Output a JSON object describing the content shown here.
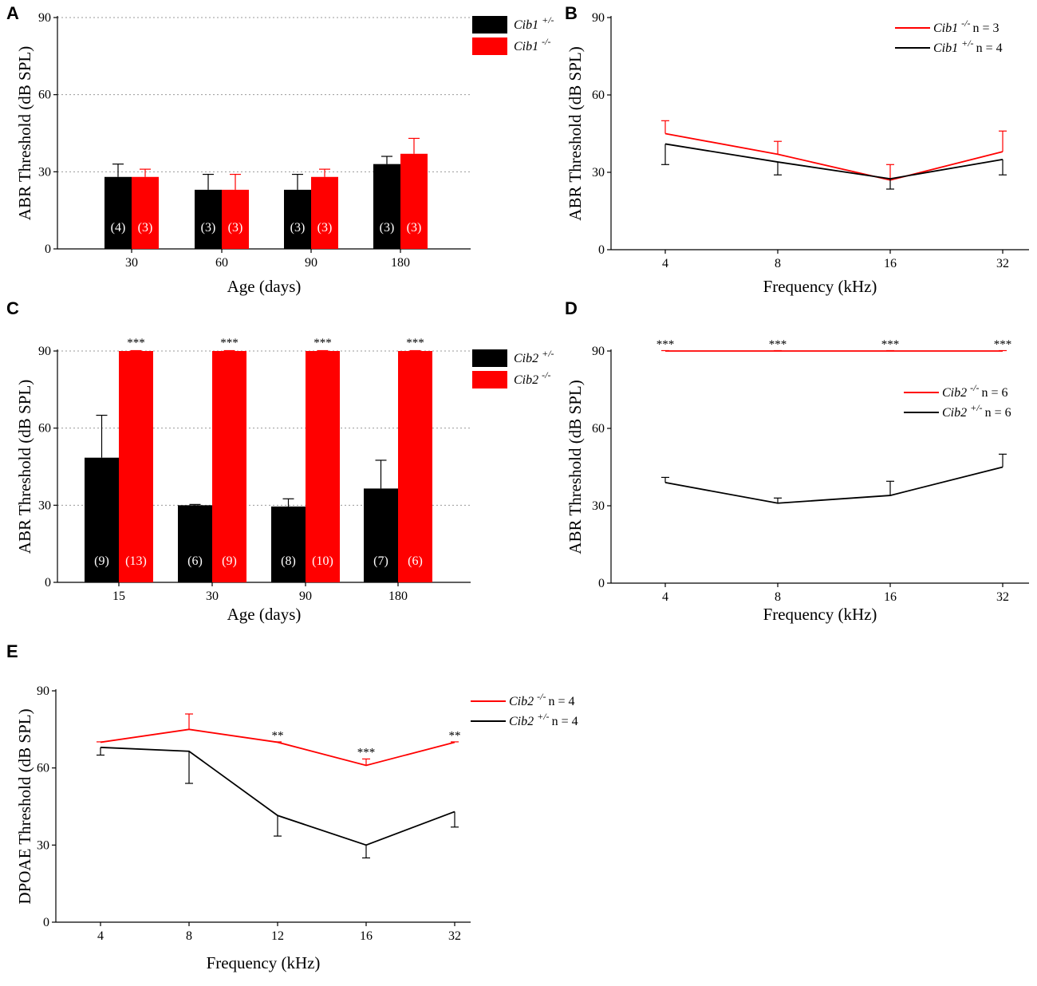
{
  "colors": {
    "red": "#ff0000",
    "black": "#000000",
    "grid": "#9a9a9a"
  },
  "chart_data": [
    {
      "panel": "A",
      "type": "bar",
      "xlabel": "Age (days)",
      "ylabel": "ABR Threshold (dB SPL)",
      "ylim": [
        0,
        90
      ],
      "yticks": [
        "0",
        "30",
        "60",
        "90"
      ],
      "categories": [
        "30",
        "60",
        "90",
        "180"
      ],
      "grid": true,
      "legend_position": "top-right",
      "series": [
        {
          "gene": "Cib1",
          "genotype": "+/-",
          "color": "#000000",
          "values": [
            28,
            23,
            23,
            33
          ],
          "errors": [
            5,
            6,
            6,
            3
          ],
          "n": [
            "(4)",
            "(3)",
            "(3)",
            "(3)"
          ]
        },
        {
          "gene": "Cib1",
          "genotype": "-/-",
          "color": "#ff0000",
          "values": [
            28,
            23,
            28,
            37
          ],
          "errors": [
            3,
            6,
            3,
            6
          ],
          "n": [
            "(3)",
            "(3)",
            "(3)",
            "(3)"
          ]
        }
      ],
      "annotations": []
    },
    {
      "panel": "B",
      "type": "line",
      "xlabel": "Frequency (kHz)",
      "ylabel": "ABR Threshold (dB SPL)",
      "ylim": [
        0,
        90
      ],
      "yticks": [
        "0",
        "30",
        "60",
        "90"
      ],
      "x": [
        "4",
        "8",
        "16",
        "32"
      ],
      "legend_position": "top-right",
      "series": [
        {
          "gene": "Cib1",
          "genotype": "-/-",
          "n_label": "n = 3",
          "color": "#ff0000",
          "values": [
            45,
            37,
            27,
            38
          ],
          "err_dir": [
            1,
            1,
            1,
            1
          ],
          "errors": [
            5,
            5,
            6,
            8
          ]
        },
        {
          "gene": "Cib1",
          "genotype": "+/-",
          "n_label": "n = 4",
          "color": "#000000",
          "values": [
            41,
            34,
            27.5,
            35
          ],
          "err_dir": [
            -1,
            -1,
            -1,
            -1
          ],
          "errors": [
            8,
            5,
            4,
            6
          ]
        }
      ],
      "stars": []
    },
    {
      "panel": "C",
      "type": "bar",
      "xlabel": "Age (days)",
      "ylabel": "ABR Threshold (dB SPL)",
      "ylim": [
        0,
        90
      ],
      "yticks": [
        "0",
        "30",
        "60",
        "90"
      ],
      "categories": [
        "15",
        "30",
        "90",
        "180"
      ],
      "grid": true,
      "legend_position": "top-right",
      "series": [
        {
          "gene": "Cib2",
          "genotype": "+/-",
          "color": "#000000",
          "values": [
            48.5,
            30,
            29.5,
            36.5
          ],
          "errors": [
            16.5,
            0.3,
            3,
            11
          ],
          "n": [
            "(9)",
            "(6)",
            "(8)",
            "(7)"
          ]
        },
        {
          "gene": "Cib2",
          "genotype": "-/-",
          "color": "#ff0000",
          "values": [
            90,
            90,
            90,
            90
          ],
          "errors": [
            0,
            0,
            0,
            0
          ],
          "n": [
            "(13)",
            "(9)",
            "(10)",
            "(6)"
          ]
        }
      ],
      "annotations": [
        "***",
        "***",
        "***",
        "***"
      ]
    },
    {
      "panel": "D",
      "type": "line",
      "xlabel": "Frequency (kHz)",
      "ylabel": "ABR Threshold (dB SPL)",
      "ylim": [
        0,
        90
      ],
      "yticks": [
        "0",
        "30",
        "60",
        "90"
      ],
      "x": [
        "4",
        "8",
        "16",
        "32"
      ],
      "legend_position": "upper-right",
      "series": [
        {
          "gene": "Cib2",
          "genotype": "-/-",
          "n_label": "n = 6",
          "color": "#ff0000",
          "values": [
            90,
            90,
            90,
            90
          ],
          "err_dir": [
            1,
            1,
            1,
            1
          ],
          "errors": [
            0,
            0,
            0,
            0
          ]
        },
        {
          "gene": "Cib2",
          "genotype": "+/-",
          "n_label": "n = 6",
          "color": "#000000",
          "values": [
            39,
            31,
            34,
            45
          ],
          "err_dir": [
            1,
            1,
            1,
            1
          ],
          "errors": [
            2,
            2,
            5.5,
            5
          ]
        }
      ],
      "stars": [
        "***",
        "***",
        "***",
        "***"
      ]
    },
    {
      "panel": "E",
      "type": "line",
      "xlabel": "Frequency (kHz)",
      "ylabel": "DPOAE Threshold (dB SPL)",
      "ylim": [
        0,
        90
      ],
      "yticks": [
        "0",
        "30",
        "60",
        "90"
      ],
      "x": [
        "4",
        "8",
        "12",
        "16",
        "32"
      ],
      "legend_position": "top-right",
      "series": [
        {
          "gene": "Cib2",
          "genotype": "-/-",
          "n_label": "n = 4",
          "color": "#ff0000",
          "values": [
            70,
            75,
            70,
            61,
            70
          ],
          "err_dir": [
            1,
            1,
            1,
            1,
            1
          ],
          "errors": [
            0,
            6,
            0,
            2.5,
            0
          ]
        },
        {
          "gene": "Cib2",
          "genotype": "+/-",
          "n_label": "n = 4",
          "color": "#000000",
          "values": [
            68,
            66.5,
            41.5,
            30,
            43
          ],
          "err_dir": [
            -1,
            -1,
            -1,
            -1,
            -1
          ],
          "errors": [
            3,
            12.5,
            8,
            5,
            6
          ]
        }
      ],
      "stars": [
        "",
        "",
        "**",
        "***",
        "**"
      ]
    }
  ]
}
